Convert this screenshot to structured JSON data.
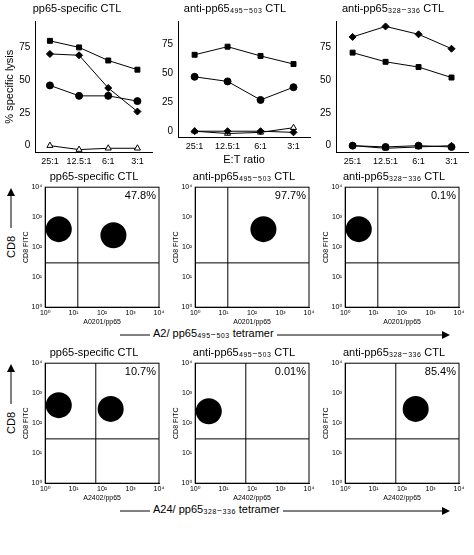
{
  "chart_data": [
    {
      "type": "line",
      "title": "pp65-specific CTL",
      "y_label": "% specific lysis",
      "categories": [
        "25:1",
        "12.5:1",
        "6:1",
        "3:1"
      ],
      "ylim": [
        -5,
        95
      ],
      "yticks": [
        0,
        25,
        50,
        75
      ],
      "grid": false,
      "series": [
        {
          "color": "#000000",
          "marker": "square",
          "values": [
            80,
            75,
            65,
            58
          ]
        },
        {
          "color": "#000000",
          "marker": "diamond",
          "values": [
            70,
            69,
            44,
            26
          ]
        },
        {
          "color": "#000000",
          "marker": "circle",
          "values": [
            46,
            38,
            38,
            34
          ]
        },
        {
          "color": "#000000",
          "marker": "triangle_open",
          "values": [
            0,
            -3,
            -2,
            -2
          ]
        }
      ]
    },
    {
      "type": "line",
      "title": "anti-pp65₄₉₅₋₅₀₃ CTL",
      "x_label": "E:T ratio",
      "categories": [
        "25:1",
        "12.5:1",
        "6:1",
        "3:1"
      ],
      "ylim": [
        -5,
        95
      ],
      "yticks": [
        0,
        25,
        50,
        75
      ],
      "grid": false,
      "series": [
        {
          "color": "#000000",
          "marker": "square",
          "values": [
            66,
            73,
            65,
            58
          ]
        },
        {
          "color": "#000000",
          "marker": "circle",
          "values": [
            47,
            43,
            27,
            38
          ]
        },
        {
          "color": "#000000",
          "marker": "diamond",
          "values": [
            0,
            0,
            0,
            -1
          ]
        },
        {
          "color": "#000000",
          "marker": "triangle_open",
          "values": [
            0,
            -2,
            -1,
            3
          ]
        }
      ]
    },
    {
      "type": "line",
      "title": "anti-pp65₃₂₈₋₃₃₆ CTL",
      "categories": [
        "25:1",
        "12.5:1",
        "6:1",
        "3:1"
      ],
      "ylim": [
        -5,
        95
      ],
      "yticks": [
        0,
        25,
        50,
        75
      ],
      "grid": false,
      "series": [
        {
          "color": "#000000",
          "marker": "diamond",
          "values": [
            83,
            91,
            85,
            74
          ]
        },
        {
          "color": "#000000",
          "marker": "square",
          "values": [
            71,
            64,
            60,
            52
          ]
        },
        {
          "color": "#000000",
          "marker": "circle",
          "values": [
            0,
            -1,
            0,
            -1
          ]
        },
        {
          "color": "#000000",
          "marker": "triangle_open",
          "values": [
            0,
            -2,
            -1,
            0
          ]
        }
      ]
    }
  ],
  "flow_panels": {
    "rows": [
      {
        "y_label": "CD8",
        "x_label": "A2/ pp65₄₉₅₋₅₀₃ tetramer",
        "charts": [
          {
            "type": "scatter",
            "title": "pp65-specific CTL",
            "x_label": "A0201/pp65",
            "y_label": "CD8 FITC",
            "log": true,
            "xlim": [
              1,
              10000
            ],
            "ylim": [
              1,
              10000
            ],
            "xticks": [
              {
                "value": 1,
                "label": "10⁰"
              },
              {
                "value": 10,
                "label": "10¹"
              },
              {
                "value": 100,
                "label": "10²"
              },
              {
                "value": 1000,
                "label": "10³"
              },
              {
                "value": 10000,
                "label": "10⁴"
              }
            ],
            "yticks": [
              {
                "value": 1,
                "label": "10⁰"
              },
              {
                "value": 10,
                "label": "10¹"
              },
              {
                "value": 100,
                "label": "10²"
              },
              {
                "value": 1000,
                "label": "10³"
              },
              {
                "value": 10000,
                "label": "10⁴"
              }
            ],
            "quadrant": {
              "x": 14,
              "y": 30
            },
            "annotation": "47.8%",
            "color": "#000000",
            "populations": [
              {
                "x": 3,
                "y": 400
              },
              {
                "x": 250,
                "y": 250
              }
            ]
          },
          {
            "type": "scatter",
            "title": "anti-pp65₄₉₅₋₅₀₃ CTL",
            "x_label": "A0201/pp65",
            "y_label": "CD8 FITC",
            "log": true,
            "xlim": [
              1,
              10000
            ],
            "ylim": [
              1,
              10000
            ],
            "xticks": [
              {
                "value": 1,
                "label": "10⁰"
              },
              {
                "value": 10,
                "label": "10¹"
              },
              {
                "value": 100,
                "label": "10²"
              },
              {
                "value": 1000,
                "label": "10³"
              },
              {
                "value": 10000,
                "label": "10⁴"
              }
            ],
            "yticks": [
              {
                "value": 1,
                "label": "10⁰"
              },
              {
                "value": 10,
                "label": "10¹"
              },
              {
                "value": 100,
                "label": "10²"
              },
              {
                "value": 1000,
                "label": "10³"
              },
              {
                "value": 10000,
                "label": "10⁴"
              }
            ],
            "quadrant": {
              "x": 14,
              "y": 30
            },
            "annotation": "97.7%",
            "color": "#000000",
            "populations": [
              {
                "x": 250,
                "y": 400
              }
            ]
          },
          {
            "type": "scatter",
            "title": "anti-pp65₃₂₈₋₃₃₆ CTL",
            "x_label": "A0201/pp65",
            "y_label": "CD8 FITC",
            "log": true,
            "xlim": [
              1,
              10000
            ],
            "ylim": [
              1,
              10000
            ],
            "xticks": [
              {
                "value": 1,
                "label": "10⁰"
              },
              {
                "value": 10,
                "label": "10¹"
              },
              {
                "value": 100,
                "label": "10²"
              },
              {
                "value": 1000,
                "label": "10³"
              },
              {
                "value": 10000,
                "label": "10⁴"
              }
            ],
            "yticks": [
              {
                "value": 1,
                "label": "10⁰"
              },
              {
                "value": 10,
                "label": "10¹"
              },
              {
                "value": 100,
                "label": "10²"
              },
              {
                "value": 1000,
                "label": "10³"
              },
              {
                "value": 10000,
                "label": "10⁴"
              }
            ],
            "quadrant": {
              "x": 14,
              "y": 30
            },
            "annotation": "0.1%",
            "color": "#000000",
            "populations": [
              {
                "x": 3,
                "y": 400
              }
            ]
          }
        ]
      },
      {
        "y_label": "CD8",
        "x_label": "A24/ pp65₃₂₈₋₃₃₆ tetramer",
        "charts": [
          {
            "type": "scatter",
            "title": "pp65-specific CTL",
            "x_label": "A2402/pp65",
            "y_label": "CD8 FITC",
            "log": true,
            "xlim": [
              1,
              10000
            ],
            "ylim": [
              1,
              10000
            ],
            "xticks": [
              {
                "value": 1,
                "label": "10⁰"
              },
              {
                "value": 10,
                "label": "10¹"
              },
              {
                "value": 100,
                "label": "10²"
              },
              {
                "value": 1000,
                "label": "10³"
              },
              {
                "value": 10000,
                "label": "10⁴"
              }
            ],
            "yticks": [
              {
                "value": 1,
                "label": "10⁰"
              },
              {
                "value": 10,
                "label": "10¹"
              },
              {
                "value": 100,
                "label": "10²"
              },
              {
                "value": 1000,
                "label": "10³"
              },
              {
                "value": 10000,
                "label": "10⁴"
              }
            ],
            "quadrant": {
              "x": 60,
              "y": 30
            },
            "annotation": "10.7%",
            "color": "#000000",
            "populations": [
              {
                "x": 3,
                "y": 400
              },
              {
                "x": 200,
                "y": 300
              }
            ]
          },
          {
            "type": "scatter",
            "title": "anti-pp65₄₉₅₋₅₀₃ CTL",
            "x_label": "A2402/pp65",
            "y_label": "CD8 FITC",
            "log": true,
            "xlim": [
              1,
              10000
            ],
            "ylim": [
              1,
              10000
            ],
            "xticks": [
              {
                "value": 1,
                "label": "10⁰"
              },
              {
                "value": 10,
                "label": "10¹"
              },
              {
                "value": 100,
                "label": "10²"
              },
              {
                "value": 1000,
                "label": "10³"
              },
              {
                "value": 10000,
                "label": "10⁴"
              }
            ],
            "yticks": [
              {
                "value": 1,
                "label": "10⁰"
              },
              {
                "value": 10,
                "label": "10¹"
              },
              {
                "value": 100,
                "label": "10²"
              },
              {
                "value": 1000,
                "label": "10³"
              },
              {
                "value": 10000,
                "label": "10⁴"
              }
            ],
            "quadrant": {
              "x": 60,
              "y": 30
            },
            "annotation": "0.01%",
            "color": "#000000",
            "populations": [
              {
                "x": 3,
                "y": 250
              }
            ]
          },
          {
            "type": "scatter",
            "title": "anti-pp65₃₂₈₋₃₃₆ CTL",
            "x_label": "A2402/pp65",
            "y_label": "CD8 FITC",
            "log": true,
            "xlim": [
              1,
              10000
            ],
            "ylim": [
              1,
              10000
            ],
            "xticks": [
              {
                "value": 1,
                "label": "10⁰"
              },
              {
                "value": 10,
                "label": "10¹"
              },
              {
                "value": 100,
                "label": "10²"
              },
              {
                "value": 1000,
                "label": "10³"
              },
              {
                "value": 10000,
                "label": "10⁴"
              }
            ],
            "yticks": [
              {
                "value": 1,
                "label": "10⁰"
              },
              {
                "value": 10,
                "label": "10¹"
              },
              {
                "value": 100,
                "label": "10²"
              },
              {
                "value": 1000,
                "label": "10³"
              },
              {
                "value": 10000,
                "label": "10⁴"
              }
            ],
            "quadrant": {
              "x": 60,
              "y": 30
            },
            "annotation": "85.4%",
            "color": "#000000",
            "populations": [
              {
                "x": 300,
                "y": 300
              }
            ]
          }
        ]
      }
    ]
  }
}
